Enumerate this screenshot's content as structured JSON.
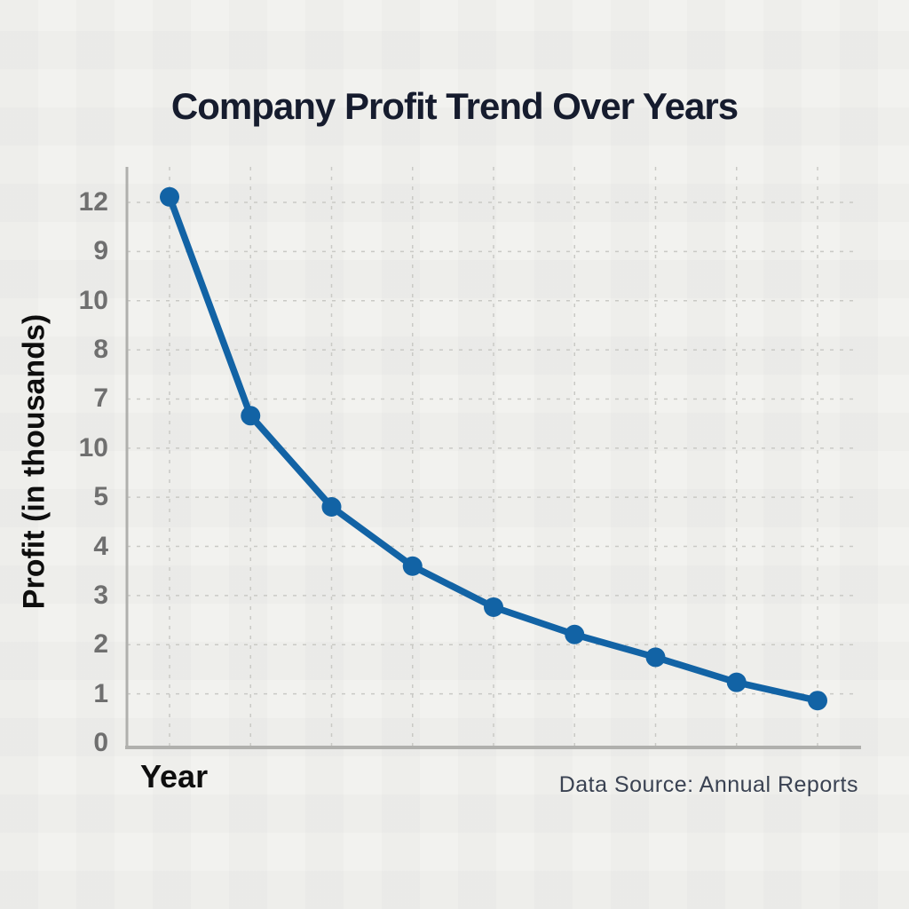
{
  "chart": {
    "title": "Company Profit Trend Over Years",
    "x_axis_label": "Year",
    "y_axis_label": "Profit (in thousands)",
    "source_note": "Data Source: Annual Reports",
    "y_tick_labels": [
      "12",
      "9",
      "10",
      "8",
      "7",
      "10",
      "5",
      "4",
      "3",
      "2",
      "1",
      "0"
    ],
    "x_tick_labels": []
  },
  "chart_data": {
    "type": "line",
    "title": "Company Profit Trend Over Years",
    "xlabel": "Year",
    "ylabel": "Profit (in thousands)",
    "series": [
      {
        "name": "Profit",
        "values": [
          12,
          7.2,
          5.2,
          3.9,
          3.0,
          2.4,
          1.9,
          1.35,
          0.95
        ]
      }
    ],
    "num_points": 9,
    "x_tick_labels_visible": false,
    "y_tick_labels_as_rendered": [
      "12",
      "9",
      "10",
      "8",
      "7",
      "10",
      "5",
      "4",
      "3",
      "2",
      "1",
      "0"
    ],
    "ylim": [
      0,
      12.5
    ],
    "grid": true,
    "legend": "none",
    "marker": "circle",
    "line_color": "#1263a5",
    "annotations": [
      "Data Source: Annual Reports"
    ]
  },
  "colors": {
    "background": "#f2f2ef",
    "line": "#1263a5",
    "title_text": "#161c2e",
    "tick_text": "#6f6f6f",
    "axis_line": "#b0b0ad",
    "grid_line": "#c9c9c5",
    "axis_label_text": "#0e0e0e",
    "source_text": "#3a4252"
  }
}
